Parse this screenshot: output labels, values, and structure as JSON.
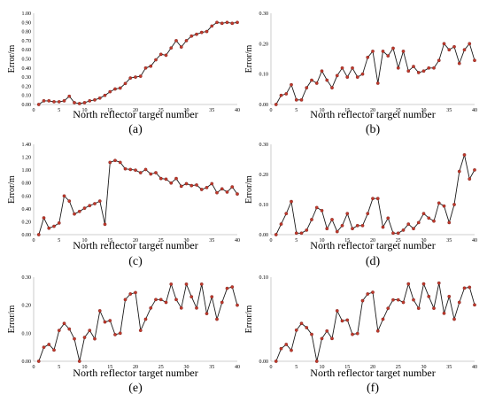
{
  "chart_data": [
    {
      "type": "line",
      "panel_label": "(a)",
      "xlabel": "North reflector target number",
      "ylabel": "Error/m",
      "xlim": [
        0,
        40
      ],
      "ylim": [
        0,
        1.0
      ],
      "x_ticks": [
        "0",
        "5",
        "10",
        "15",
        "20",
        "25",
        "30",
        "35",
        "40"
      ],
      "y_ticks": [
        "0.00",
        "0.10",
        "0.20",
        "0.30",
        "0.40",
        "0.50",
        "0.60",
        "0.70",
        "0.80",
        "0.90",
        "1.00"
      ],
      "grid": "none",
      "x": [
        1,
        2,
        3,
        4,
        5,
        6,
        7,
        8,
        9,
        10,
        11,
        12,
        13,
        14,
        15,
        16,
        17,
        18,
        19,
        20,
        21,
        22,
        23,
        24,
        25,
        26,
        27,
        28,
        29,
        30,
        31,
        32,
        33,
        34,
        35,
        36,
        37,
        38,
        39,
        40
      ],
      "values": [
        0.0,
        0.04,
        0.04,
        0.03,
        0.03,
        0.04,
        0.09,
        0.02,
        0.01,
        0.02,
        0.04,
        0.05,
        0.07,
        0.1,
        0.14,
        0.17,
        0.18,
        0.23,
        0.29,
        0.3,
        0.31,
        0.4,
        0.42,
        0.49,
        0.55,
        0.54,
        0.62,
        0.7,
        0.63,
        0.7,
        0.75,
        0.77,
        0.79,
        0.8,
        0.86,
        0.9,
        0.89,
        0.9,
        0.89,
        0.9
      ]
    },
    {
      "type": "line",
      "panel_label": "(b)",
      "xlabel": "North reflector target number",
      "ylabel": "Error/m",
      "xlim": [
        0,
        40
      ],
      "ylim": [
        0,
        0.3
      ],
      "x_ticks": [
        "0",
        "5",
        "10",
        "15",
        "20",
        "25",
        "30",
        "35",
        "40"
      ],
      "y_ticks": [
        "0.00",
        "0.10",
        "0.20",
        "0.30"
      ],
      "grid": "none",
      "x": [
        1,
        2,
        3,
        4,
        5,
        6,
        7,
        8,
        9,
        10,
        11,
        12,
        13,
        14,
        15,
        16,
        17,
        18,
        19,
        20,
        21,
        22,
        23,
        24,
        25,
        26,
        27,
        28,
        29,
        30,
        31,
        32,
        33,
        34,
        35,
        36,
        37,
        38,
        39,
        40
      ],
      "values": [
        0.0,
        0.03,
        0.035,
        0.065,
        0.015,
        0.015,
        0.055,
        0.08,
        0.07,
        0.11,
        0.08,
        0.055,
        0.095,
        0.12,
        0.09,
        0.12,
        0.09,
        0.1,
        0.155,
        0.175,
        0.07,
        0.175,
        0.16,
        0.185,
        0.12,
        0.175,
        0.11,
        0.125,
        0.105,
        0.11,
        0.12,
        0.12,
        0.145,
        0.2,
        0.18,
        0.19,
        0.135,
        0.18,
        0.2,
        0.145
      ]
    },
    {
      "type": "line",
      "panel_label": "(c)",
      "xlabel": "North reflector target number",
      "ylabel": "Error/m",
      "xlim": [
        0,
        40
      ],
      "ylim": [
        0,
        1.4
      ],
      "x_ticks": [
        "0",
        "5",
        "10",
        "15",
        "20",
        "25",
        "30",
        "35",
        "40"
      ],
      "y_ticks": [
        "0.00",
        "0.20",
        "0.40",
        "0.60",
        "0.80",
        "1.00",
        "1.20",
        "1.40"
      ],
      "grid": "none",
      "x": [
        1,
        2,
        3,
        4,
        5,
        6,
        7,
        8,
        9,
        10,
        11,
        12,
        13,
        14,
        15,
        16,
        17,
        18,
        19,
        20,
        21,
        22,
        23,
        24,
        25,
        26,
        27,
        28,
        29,
        30,
        31,
        32,
        33,
        34,
        35,
        36,
        37,
        38,
        39,
        40
      ],
      "values": [
        0.0,
        0.26,
        0.1,
        0.13,
        0.18,
        0.6,
        0.52,
        0.32,
        0.36,
        0.41,
        0.45,
        0.48,
        0.52,
        0.16,
        1.12,
        1.15,
        1.12,
        1.02,
        1.01,
        1.0,
        0.96,
        1.01,
        0.94,
        0.96,
        0.87,
        0.86,
        0.8,
        0.87,
        0.75,
        0.79,
        0.76,
        0.77,
        0.7,
        0.73,
        0.79,
        0.65,
        0.71,
        0.66,
        0.74,
        0.63
      ]
    },
    {
      "type": "line",
      "panel_label": "(d)",
      "xlabel": "North reflector target number",
      "ylabel": "Error/m",
      "xlim": [
        0,
        40
      ],
      "ylim": [
        0,
        0.3
      ],
      "x_ticks": [
        "0",
        "5",
        "10",
        "15",
        "20",
        "25",
        "30",
        "35",
        "40"
      ],
      "y_ticks": [
        "0.00",
        "0.10",
        "0.20",
        "0.30"
      ],
      "grid": "none",
      "x": [
        1,
        2,
        3,
        4,
        5,
        6,
        7,
        8,
        9,
        10,
        11,
        12,
        13,
        14,
        15,
        16,
        17,
        18,
        19,
        20,
        21,
        22,
        23,
        24,
        25,
        26,
        27,
        28,
        29,
        30,
        31,
        32,
        33,
        34,
        35,
        36,
        37,
        38,
        39,
        40
      ],
      "values": [
        0.0,
        0.035,
        0.07,
        0.11,
        0.005,
        0.005,
        0.015,
        0.05,
        0.09,
        0.08,
        0.02,
        0.05,
        0.01,
        0.03,
        0.07,
        0.02,
        0.03,
        0.03,
        0.07,
        0.12,
        0.12,
        0.025,
        0.055,
        0.005,
        0.005,
        0.015,
        0.035,
        0.02,
        0.04,
        0.07,
        0.055,
        0.045,
        0.105,
        0.095,
        0.04,
        0.1,
        0.21,
        0.265,
        0.185,
        0.215
      ]
    },
    {
      "type": "line",
      "panel_label": "(e)",
      "xlabel": "North reflector target number",
      "ylabel": "Error/m",
      "xlim": [
        0,
        40
      ],
      "ylim": [
        0,
        0.3
      ],
      "x_ticks": [
        "0",
        "5",
        "10",
        "15",
        "20",
        "25",
        "30",
        "35",
        "40"
      ],
      "y_ticks": [
        "0.00",
        "0.10",
        "0.20",
        "0.30"
      ],
      "grid": "none",
      "x": [
        1,
        2,
        3,
        4,
        5,
        6,
        7,
        8,
        9,
        10,
        11,
        12,
        13,
        14,
        15,
        16,
        17,
        18,
        19,
        20,
        21,
        22,
        23,
        24,
        25,
        26,
        27,
        28,
        29,
        30,
        31,
        32,
        33,
        34,
        35,
        36,
        37,
        38,
        39,
        40
      ],
      "values": [
        0.0,
        0.05,
        0.06,
        0.04,
        0.11,
        0.135,
        0.115,
        0.08,
        0.0,
        0.085,
        0.11,
        0.08,
        0.18,
        0.14,
        0.145,
        0.095,
        0.1,
        0.22,
        0.24,
        0.245,
        0.11,
        0.15,
        0.19,
        0.22,
        0.22,
        0.21,
        0.275,
        0.22,
        0.19,
        0.275,
        0.23,
        0.19,
        0.275,
        0.17,
        0.23,
        0.15,
        0.21,
        0.26,
        0.265,
        0.2
      ]
    },
    {
      "type": "line",
      "panel_label": "(f)",
      "xlabel": "North reflector target number",
      "ylabel": "Error/m",
      "xlim": [
        0,
        40
      ],
      "ylim": [
        0,
        0.1
      ],
      "x_ticks": [
        "0",
        "5",
        "10",
        "15",
        "20",
        "25",
        "30",
        "35",
        "40"
      ],
      "y_ticks": [
        "0.00",
        "0.10"
      ],
      "grid": "none",
      "x": [
        1,
        2,
        3,
        4,
        5,
        6,
        7,
        8,
        9,
        10,
        11,
        12,
        13,
        14,
        15,
        16,
        17,
        18,
        19,
        20,
        21,
        22,
        23,
        24,
        25,
        26,
        27,
        28,
        29,
        30,
        31,
        32,
        33,
        34,
        35,
        36,
        37,
        38,
        39,
        40
      ],
      "values": [
        0.0,
        0.015,
        0.02,
        0.013,
        0.037,
        0.045,
        0.04,
        0.032,
        0.0,
        0.027,
        0.036,
        0.027,
        0.06,
        0.048,
        0.049,
        0.032,
        0.033,
        0.072,
        0.08,
        0.082,
        0.036,
        0.05,
        0.063,
        0.073,
        0.073,
        0.07,
        0.092,
        0.073,
        0.063,
        0.092,
        0.077,
        0.063,
        0.093,
        0.057,
        0.077,
        0.05,
        0.07,
        0.087,
        0.088,
        0.067
      ]
    }
  ]
}
